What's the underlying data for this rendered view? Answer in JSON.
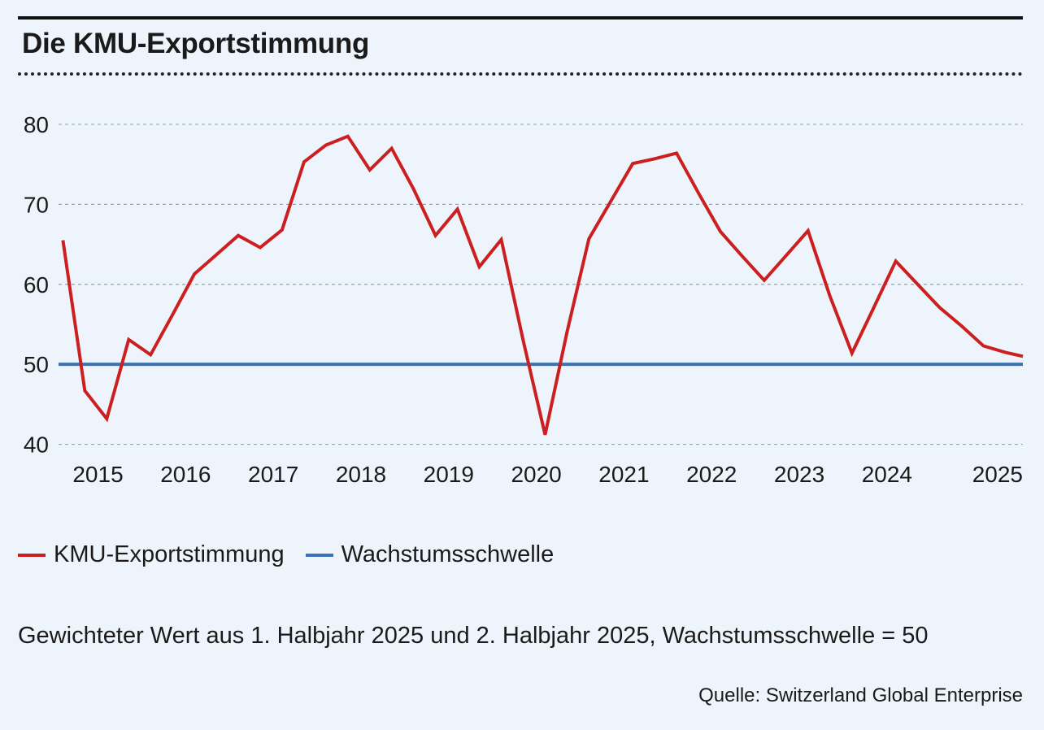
{
  "title": "Die KMU-Exportstimmung",
  "legend": {
    "series_label": "KMU-Exportstimmung",
    "threshold_label": "Wachstumsschwelle"
  },
  "note": "Gewichteter Wert aus 1. Halbjahr 2025 und 2. Halbjahr 2025, Wachstumsschwelle = 50",
  "source": "Quelle: Switzerland Global Enterprise",
  "colors": {
    "series": "#cc1f1f",
    "threshold": "#3b73b9",
    "grid": "#9aa4b8",
    "background": "#eef4fb"
  },
  "chart_data": {
    "type": "line",
    "x_ticks": [
      "2015",
      "2016",
      "2017",
      "2018",
      "2019",
      "2020",
      "2021",
      "2022",
      "2023",
      "2024",
      "2025"
    ],
    "y_ticks": [
      40,
      50,
      60,
      70,
      80
    ],
    "ylim": [
      39,
      84
    ],
    "xlim": [
      2014.55,
      2025.55
    ],
    "grid": "horizontal dashed",
    "legend_position": "bottom-left",
    "series": [
      {
        "name": "KMU-Exportstimmung",
        "x": [
          2014.6,
          2014.85,
          2015.1,
          2015.35,
          2015.6,
          2015.85,
          2016.1,
          2016.35,
          2016.6,
          2016.85,
          2017.1,
          2017.35,
          2017.6,
          2017.85,
          2018.1,
          2018.35,
          2018.6,
          2018.85,
          2019.1,
          2019.35,
          2019.6,
          2019.85,
          2020.1,
          2020.35,
          2020.6,
          2020.85,
          2021.1,
          2021.35,
          2021.6,
          2021.85,
          2022.1,
          2022.35,
          2022.6,
          2022.85,
          2023.1,
          2023.35,
          2023.6,
          2023.85,
          2024.1,
          2024.35,
          2024.6,
          2024.85,
          2025.1,
          2025.35,
          2025.55
        ],
        "values": [
          65.5,
          46.7,
          43.2,
          53.1,
          51.2,
          56.2,
          61.3,
          63.7,
          66.1,
          64.6,
          66.8,
          75.3,
          77.4,
          78.5,
          74.3,
          77.0,
          71.9,
          66.1,
          69.4,
          62.2,
          65.6,
          53.0,
          41.2,
          54.0,
          65.7,
          70.4,
          75.1,
          75.7,
          76.4,
          71.4,
          66.6,
          63.5,
          60.5,
          63.6,
          66.7,
          58.5,
          51.4,
          57.1,
          62.9,
          60.0,
          57.1,
          54.8,
          52.3,
          51.5,
          51.0
        ]
      },
      {
        "name": "Wachstumsschwelle",
        "constant": 50
      }
    ]
  }
}
